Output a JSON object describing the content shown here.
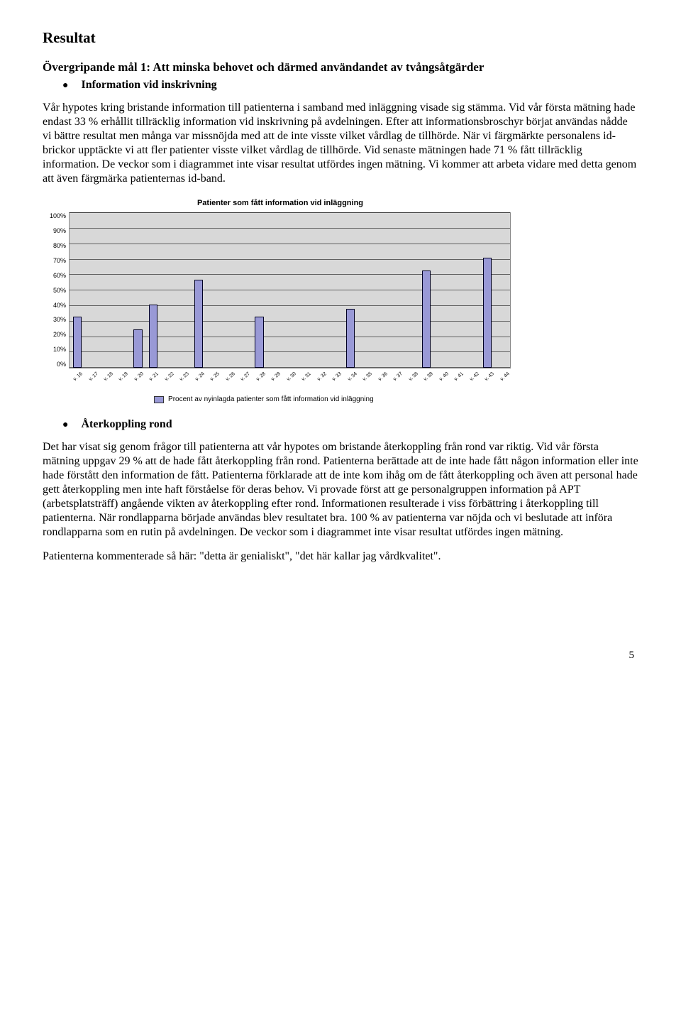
{
  "heading": "Resultat",
  "goal_line": "Övergripande mål 1:  Att minska behovet och därmed användandet av tvångsåtgärder",
  "section1": {
    "bullet_title": "Information vid inskrivning",
    "paragraph": "Vår hypotes kring bristande information till patienterna i samband med  inläggning visade sig stämma. Vid vår första mätning hade endast 33 % erhållit tillräcklig information vid inskrivning på avdelningen. Efter att informationsbroschyr börjat användas nådde vi bättre resultat men många var missnöjda med att de inte visste vilket vårdlag de tillhörde. När vi färgmärkte personalens id-brickor upptäckte vi att fler patienter visste vilket vårdlag de tillhörde. Vid senaste mätningen hade 71 % fått tillräcklig information. De veckor som i diagrammet inte visar resultat utfördes ingen mätning. Vi kommer att arbeta vidare med detta genom att även färgmärka patienternas id-band."
  },
  "chart": {
    "type": "bar",
    "title": "Patienter som fått information vid inläggning",
    "categories": [
      "v. 16",
      "v. 17",
      "v. 18",
      "v. 19",
      "v. 20",
      "v. 21",
      "v. 22",
      "v. 23",
      "v. 24",
      "v. 25",
      "v. 26",
      "v. 27",
      "v. 28",
      "v. 29",
      "v. 30",
      "v. 31",
      "v. 32",
      "v. 33",
      "v. 34",
      "v. 35",
      "v. 36",
      "v. 37",
      "v. 38",
      "v. 39",
      "v. 40",
      "v. 41",
      "v. 42",
      "v. 43",
      "v. 44"
    ],
    "values": [
      33,
      0,
      0,
      0,
      25,
      41,
      0,
      0,
      57,
      0,
      0,
      0,
      33,
      0,
      0,
      0,
      0,
      0,
      38,
      0,
      0,
      0,
      0,
      63,
      0,
      0,
      0,
      71,
      0
    ],
    "ylim": [
      0,
      100
    ],
    "ytick_step": 10,
    "y_tick_labels": [
      "100%",
      "90%",
      "80%",
      "70%",
      "60%",
      "50%",
      "40%",
      "30%",
      "20%",
      "10%",
      "0%"
    ],
    "bar_color": "#9999d6",
    "bar_border_color": "#000022",
    "plot_background": "#d8d8d8",
    "grid_color": "#000000",
    "title_fontsize": 11,
    "axis_fontsize": 9,
    "legend_text": "Procent av nyinlagda patienter som fått information vid inläggning",
    "legend_swatch_color": "#9999d6"
  },
  "section2": {
    "bullet_title": "Återkoppling rond",
    "paragraph": "Det har visat sig genom frågor till patienterna att vår hypotes om bristande återkoppling från rond var riktig. Vid vår första mätning uppgav 29 % att de hade fått återkoppling från rond. Patienterna berättade att de inte hade fått någon information eller inte hade förstått den information de fått. Patienterna förklarade att de inte kom ihåg om de fått återkoppling och även att personal hade gett återkoppling men inte haft förståelse för deras behov. Vi provade först att ge personalgruppen information på APT (arbetsplatsträff) angående vikten av återkoppling efter rond. Informationen resulterade i viss förbättring i återkoppling till patienterna. När rondlapparna började användas blev resultatet bra. 100 % av patienterna var nöjda och vi beslutade att införa rondlapparna som en rutin på avdelningen. De veckor som i diagrammet inte visar resultat utfördes ingen mätning.",
    "quote_line": "Patienterna kommenterade så här: \"detta är genialiskt\", \"det här kallar jag vårdkvalitet\"."
  },
  "page_number": "5"
}
